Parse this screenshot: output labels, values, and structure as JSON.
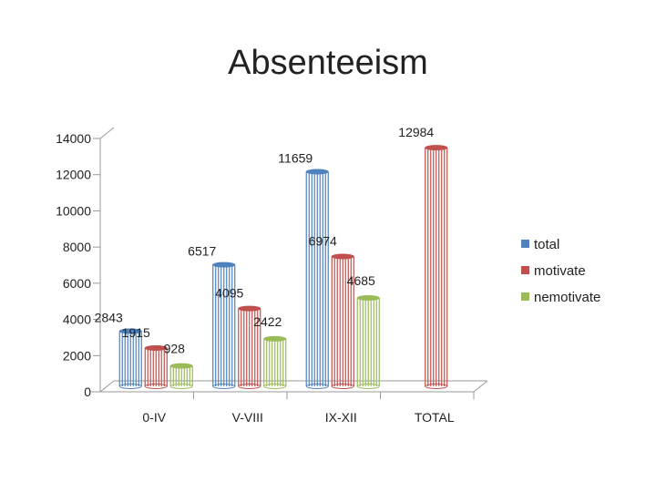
{
  "chart_data": {
    "type": "bar",
    "title": "Absenteeism",
    "xlabel": "",
    "ylabel": "",
    "categories": [
      "0-IV",
      "V-VIII",
      "IX-XII",
      "TOTAL"
    ],
    "series": [
      {
        "name": "total",
        "color": "#4f81bd",
        "values": [
          2843,
          6517,
          11659,
          null
        ]
      },
      {
        "name": "motivate",
        "color": "#c0504d",
        "values": [
          1915,
          4095,
          6974,
          12984
        ]
      },
      {
        "name": "nemotivate",
        "color": "#9bbb59",
        "values": [
          928,
          2422,
          4685,
          null
        ]
      }
    ],
    "yticks": [
      0,
      2000,
      4000,
      6000,
      8000,
      10000,
      12000,
      14000
    ],
    "ylim": [
      0,
      14000
    ],
    "grid": false,
    "legend": "right"
  }
}
